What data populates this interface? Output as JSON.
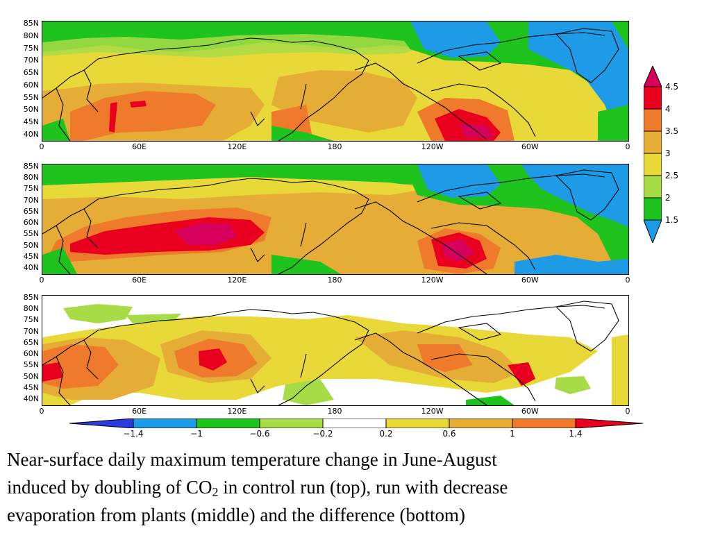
{
  "map_data": {
    "lat_labels": [
      "85N",
      "80N",
      "75N",
      "70N",
      "65N",
      "60N",
      "55N",
      "50N",
      "45N",
      "40N"
    ],
    "lon_labels": [
      "0",
      "60E",
      "120E",
      "180",
      "120W",
      "60W",
      "0"
    ],
    "panels": [
      {
        "name": "control-run",
        "position": "top"
      },
      {
        "name": "decreased-evaporation-run",
        "position": "middle"
      },
      {
        "name": "difference",
        "position": "bottom"
      }
    ],
    "colorbar_main": {
      "labels": [
        "4.5",
        "4",
        "3.5",
        "3",
        "2.5",
        "2",
        "1.5"
      ],
      "colors": [
        "#d6005c",
        "#e8001e",
        "#ef7a2b",
        "#e6ad36",
        "#e8d838",
        "#a8dc46",
        "#1ec31e",
        "#1e9be6"
      ]
    },
    "colorbar_diff": {
      "labels": [
        "−1.4",
        "−1",
        "−0.6",
        "−0.2",
        "0.2",
        "0.6",
        "1",
        "1.4"
      ],
      "colors": [
        "#2a3bdf",
        "#1e9be6",
        "#1ec31e",
        "#a8dc46",
        "#ffffff",
        "#e8d838",
        "#e6ad36",
        "#ef7a2b",
        "#e8001e"
      ]
    }
  },
  "caption": {
    "line1": "Near-surface daily maximum temperature change in June-August",
    "line2a": "induced by doubling of CO",
    "line2sub": "2",
    "line2b": " in control run (top), run with decrease",
    "line3": "evaporation from plants (middle) and the difference (bottom)"
  }
}
